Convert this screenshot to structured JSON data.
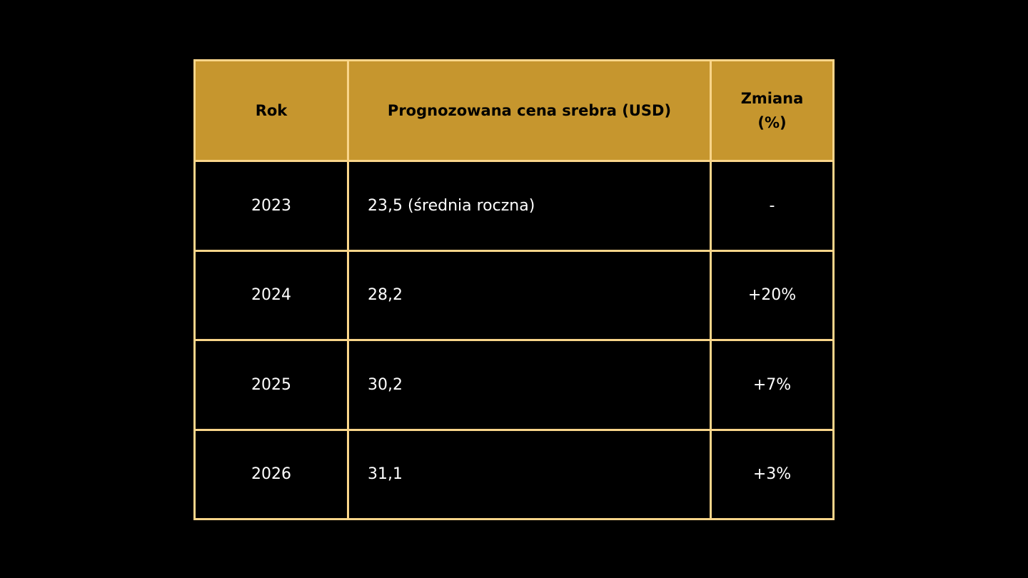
{
  "chart_data": {
    "type": "table",
    "columns": [
      "Rok",
      "Prognozowana cena srebra (USD)",
      "Zmiana\n(%)"
    ],
    "rows": [
      [
        "2023",
        "23,5 (średnia roczna)",
        "-"
      ],
      [
        "2024",
        "28,2",
        "+20%"
      ],
      [
        "2025",
        "30,2",
        "+7%"
      ],
      [
        "2026",
        "31,1",
        "+3%"
      ]
    ],
    "colors": {
      "header_bg": "#c6962e",
      "border": "#f9d58a",
      "body_bg": "#000000",
      "body_text": "#ffffff"
    }
  },
  "header": {
    "col0": "Rok",
    "col1": "Prognozowana cena srebra (USD)",
    "col2a": "Zmiana",
    "col2b": "(%)"
  }
}
